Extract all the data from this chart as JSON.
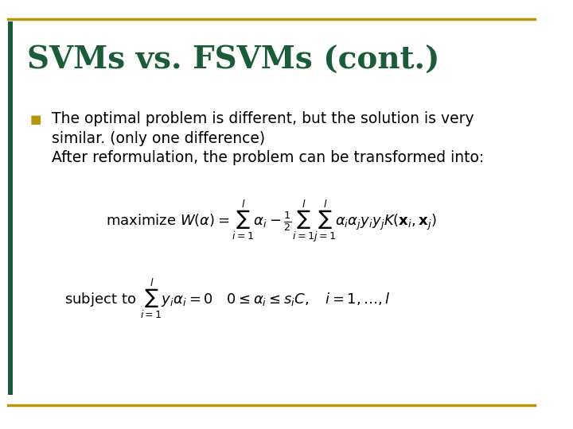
{
  "title": "SVMs vs. FSVMs (cont.)",
  "title_color": "#1a5c38",
  "title_fontsize": 28,
  "background_color": "#ffffff",
  "border_color": "#b8960c",
  "bullet_color": "#b8960c",
  "bullet_text_color": "#000000",
  "bullet_text": "The optimal problem is different, but the solution is very\nsimilar. (only one difference)\nAfter reformulation, the problem can be transformed into:",
  "math_maximize": "\\mathrm{maximize}\\ W(\\alpha) = \\sum_{i=1}^{l} \\alpha_i - \\frac{1}{2}\\sum_{i=1}^{l}\\sum_{j=1}^{l} \\alpha_i\\alpha_j y_i y_j K(\\mathbf{x}_i, \\mathbf{x}_j)",
  "math_subject": "\\mathrm{subject\\ to}\\ \\sum_{i=1}^{l} y_i\\alpha_i = 0 \\quad 0 \\le \\alpha_i \\le s_i C, \\quad i=1,\\ldots,l",
  "left_bar_color": "#1a5c38",
  "bottom_bar_color": "#b8960c"
}
